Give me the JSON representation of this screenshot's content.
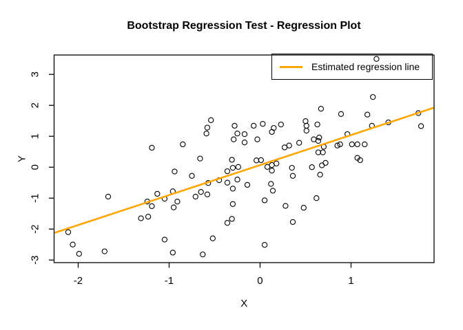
{
  "chart_data": {
    "type": "scatter",
    "title": "Bootstrap Regression Test - Regression Plot",
    "xlabel": "X",
    "ylabel": "Y",
    "x_ticks": [
      -2,
      -1,
      0,
      1
    ],
    "y_ticks": [
      -3,
      -2,
      -1,
      0,
      1,
      2,
      3
    ],
    "xlim": [
      -2.265,
      1.913
    ],
    "ylim": [
      -3.084,
      3.627
    ],
    "grid": false,
    "point_style": {
      "shape": "open-circle",
      "color": "#000000"
    },
    "regression_line": {
      "slope": 0.97,
      "intercept": 0.07,
      "color": "#FFA500"
    },
    "legend": {
      "label": "Estimated regression line",
      "line_color": "#FFA500",
      "position": "topright"
    },
    "points": [
      [
        -0.54,
        1.52
      ],
      [
        0.67,
        1.89
      ],
      [
        0.89,
        1.72
      ],
      [
        0.5,
        1.49
      ],
      [
        0.63,
        1.38
      ],
      [
        0.03,
        1.4
      ],
      [
        0.23,
        1.38
      ],
      [
        1.28,
        3.5
      ],
      [
        1.24,
        2.27
      ],
      [
        1.18,
        1.7
      ],
      [
        1.74,
        1.75
      ],
      [
        1.41,
        1.45
      ],
      [
        -1.19,
        0.63
      ],
      [
        -1.67,
        -0.95
      ],
      [
        -0.58,
        1.28
      ],
      [
        -0.28,
        1.34
      ],
      [
        -0.25,
        1.09
      ],
      [
        -0.17,
        1.07
      ],
      [
        -0.29,
        0.9
      ],
      [
        -0.17,
        0.8
      ],
      [
        -0.59,
        1.09
      ],
      [
        -0.85,
        0.74
      ],
      [
        -0.66,
        0.28
      ],
      [
        -0.31,
        0.24
      ],
      [
        -0.94,
        -0.14
      ],
      [
        -0.36,
        -0.13
      ],
      [
        -0.3,
        -0.02
      ],
      [
        -0.24,
        0.01
      ],
      [
        -0.75,
        -0.28
      ],
      [
        -0.36,
        -0.5
      ],
      [
        -0.25,
        -0.4
      ],
      [
        -0.45,
        -0.42
      ],
      [
        -0.57,
        -0.51
      ],
      [
        -0.3,
        -0.69
      ],
      [
        -0.14,
        -0.57
      ],
      [
        -0.96,
        -0.78
      ],
      [
        -1.13,
        -0.86
      ],
      [
        -0.58,
        -0.88
      ],
      [
        -0.71,
        -0.95
      ],
      [
        -0.65,
        -0.8
      ],
      [
        -0.07,
        1.34
      ],
      [
        0.15,
        1.27
      ],
      [
        0.51,
        1.34
      ],
      [
        0.51,
        1.18
      ],
      [
        -0.03,
        0.9
      ],
      [
        0.13,
        1.14
      ],
      [
        0.59,
        0.9
      ],
      [
        0.64,
        0.85
      ],
      [
        0.65,
        0.96
      ],
      [
        0.27,
        0.64
      ],
      [
        0.32,
        0.7
      ],
      [
        0.43,
        0.79
      ],
      [
        0.7,
        0.66
      ],
      [
        0.85,
        0.7
      ],
      [
        0.88,
        0.74
      ],
      [
        0.96,
        1.07
      ],
      [
        0.64,
        0.48
      ],
      [
        0.69,
        0.48
      ],
      [
        -0.04,
        0.22
      ],
      [
        0.01,
        0.23
      ],
      [
        0.08,
        0.01
      ],
      [
        0.13,
        0.07
      ],
      [
        0.18,
        0.12
      ],
      [
        0.13,
        -0.11
      ],
      [
        0.35,
        -0.02
      ],
      [
        0.36,
        -0.28
      ],
      [
        0.57,
        0.0
      ],
      [
        0.68,
        0.06
      ],
      [
        0.72,
        0.14
      ],
      [
        0.66,
        -0.24
      ],
      [
        0.12,
        -0.54
      ],
      [
        0.14,
        -0.76
      ],
      [
        0.62,
        -1.0
      ],
      [
        0.05,
        -1.07
      ],
      [
        1.23,
        1.34
      ],
      [
        1.77,
        1.33
      ],
      [
        1.07,
        0.74
      ],
      [
        1.15,
        0.74
      ],
      [
        1.07,
        0.3
      ],
      [
        1.1,
        0.23
      ],
      [
        1.01,
        0.74
      ],
      [
        -1.24,
        -1.11
      ],
      [
        -1.19,
        -1.26
      ],
      [
        -1.31,
        -1.65
      ],
      [
        -1.23,
        -1.6
      ],
      [
        -2.11,
        -2.1
      ],
      [
        -2.06,
        -2.5
      ],
      [
        -1.99,
        -2.8
      ],
      [
        -1.71,
        -2.72
      ],
      [
        -1.05,
        -1.02
      ],
      [
        -0.95,
        -1.3
      ],
      [
        -0.91,
        -1.11
      ],
      [
        -0.3,
        -1.19
      ],
      [
        -0.36,
        -1.8
      ],
      [
        -0.31,
        -1.67
      ],
      [
        -1.05,
        -2.34
      ],
      [
        -0.52,
        -2.3
      ],
      [
        -0.96,
        -2.76
      ],
      [
        -0.63,
        -2.82
      ],
      [
        0.28,
        -1.25
      ],
      [
        0.48,
        -1.31
      ],
      [
        0.36,
        -1.77
      ],
      [
        0.05,
        -2.51
      ]
    ]
  }
}
